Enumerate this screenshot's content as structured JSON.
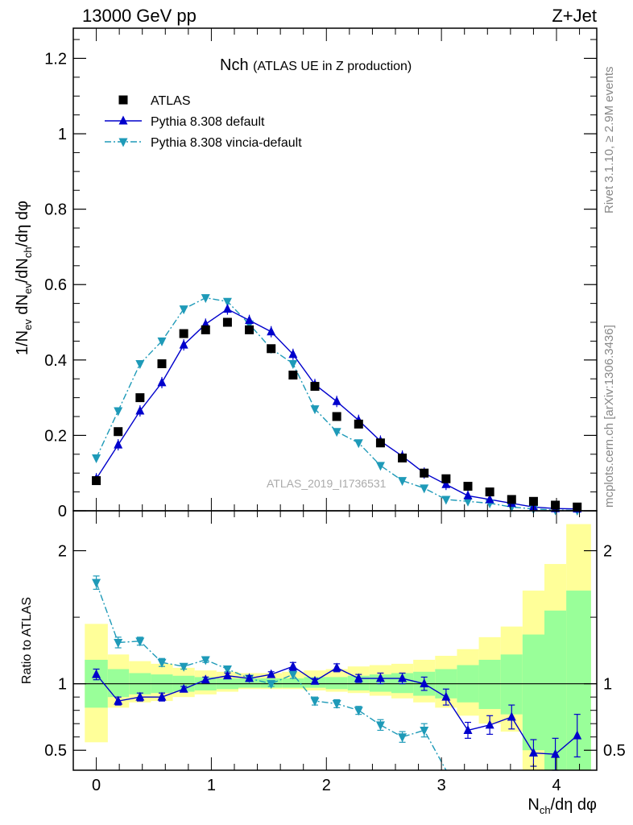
{
  "header": {
    "energy": "13000 GeV pp",
    "process": "Z+Jet"
  },
  "side_labels": {
    "rivet": "Rivet 3.1.10, ≥ 2.9M events",
    "mcplots": "mcplots.cern.ch [arXiv:1306.3436]"
  },
  "chart_data": [
    {
      "type": "scatter",
      "title_main": "Nch",
      "title_sub": "(ATLAS UE in Z production)",
      "xlabel": "N_ch/dη dφ",
      "ylabel": "1/N_ev dN_ev/dN_ch/dη dφ",
      "analysis_label": "ATLAS_2019_I1736531",
      "xlim": [
        -0.2,
        4.35
      ],
      "ylim": [
        0,
        1.28
      ],
      "yticks": [
        0,
        0.2,
        0.4,
        0.6,
        0.8,
        1,
        1.2
      ],
      "ytick_labels": [
        "0",
        "0.2",
        "0.4",
        "0.6",
        "0.8",
        "1",
        "1.2"
      ],
      "legend": [
        "ATLAS",
        "Pythia 8.308 default",
        "Pythia 8.308 vincia-default"
      ],
      "legend_position": "top-left",
      "colors": {
        "data": "#000000",
        "default": "#0000cc",
        "vincia": "#1e9ab8"
      },
      "x": [
        0,
        0.19,
        0.38,
        0.57,
        0.76,
        0.95,
        1.14,
        1.33,
        1.52,
        1.71,
        1.9,
        2.09,
        2.28,
        2.47,
        2.66,
        2.85,
        3.04,
        3.23,
        3.42,
        3.61,
        3.8,
        3.99,
        4.18
      ],
      "series": [
        {
          "name": "ATLAS",
          "marker": "square",
          "values": [
            0.08,
            0.21,
            0.3,
            0.39,
            0.47,
            0.48,
            0.5,
            0.48,
            0.43,
            0.36,
            0.33,
            0.25,
            0.23,
            0.18,
            0.14,
            0.1,
            0.085,
            0.065,
            0.05,
            0.03,
            0.025,
            0.015,
            0.01
          ]
        },
        {
          "name": "Pythia 8.308 default",
          "marker": "triangle-up",
          "values": [
            0.085,
            0.175,
            0.265,
            0.34,
            0.44,
            0.495,
            0.535,
            0.505,
            0.475,
            0.415,
            0.335,
            0.29,
            0.24,
            0.185,
            0.145,
            0.1,
            0.07,
            0.04,
            0.03,
            0.02,
            0.01,
            0.006,
            0.005
          ]
        },
        {
          "name": "Pythia 8.308 vincia-default",
          "marker": "triangle-down",
          "values": [
            0.14,
            0.265,
            0.39,
            0.45,
            0.535,
            0.565,
            0.555,
            0.495,
            0.43,
            0.39,
            0.27,
            0.21,
            0.18,
            0.12,
            0.08,
            0.06,
            0.03,
            0.025,
            0.02,
            0.01,
            0.005,
            0.002,
            0.001
          ]
        }
      ]
    },
    {
      "type": "line",
      "ylabel": "Ratio to ATLAS",
      "ylim": [
        0.35,
        2.3
      ],
      "yticks": [
        0.5,
        1,
        2
      ],
      "ytick_labels": [
        "0.5",
        "1",
        "2"
      ],
      "xticks": [
        0,
        1,
        2,
        3,
        4
      ],
      "xtick_labels": [
        "0",
        "1",
        "2",
        "3",
        "4"
      ],
      "bin_edges": [
        -0.1,
        0.1,
        0.285,
        0.475,
        0.665,
        0.855,
        1.045,
        1.235,
        1.425,
        1.615,
        1.805,
        1.995,
        2.185,
        2.375,
        2.565,
        2.755,
        2.945,
        3.135,
        3.325,
        3.515,
        3.705,
        3.895,
        4.085,
        4.3
      ],
      "band_outer_lo": [
        0.56,
        0.82,
        0.86,
        0.87,
        0.9,
        0.92,
        0.94,
        0.96,
        0.96,
        0.96,
        0.95,
        0.94,
        0.93,
        0.91,
        0.89,
        0.86,
        0.82,
        0.76,
        0.7,
        0.64,
        0.1,
        0.1,
        0.1
      ],
      "band_outer_hi": [
        1.45,
        1.22,
        1.17,
        1.15,
        1.12,
        1.1,
        1.09,
        1.08,
        1.08,
        1.09,
        1.1,
        1.11,
        1.13,
        1.14,
        1.15,
        1.18,
        1.21,
        1.26,
        1.35,
        1.43,
        1.7,
        1.9,
        2.2
      ],
      "band_inner_lo": [
        0.82,
        0.9,
        0.92,
        0.93,
        0.94,
        0.95,
        0.96,
        0.97,
        0.97,
        0.97,
        0.97,
        0.96,
        0.95,
        0.94,
        0.93,
        0.91,
        0.89,
        0.86,
        0.81,
        0.77,
        0.5,
        0.1,
        0.1
      ],
      "band_inner_hi": [
        1.18,
        1.11,
        1.08,
        1.07,
        1.06,
        1.05,
        1.04,
        1.04,
        1.04,
        1.04,
        1.05,
        1.05,
        1.06,
        1.07,
        1.08,
        1.09,
        1.11,
        1.14,
        1.18,
        1.22,
        1.37,
        1.55,
        1.7
      ],
      "band_colors": {
        "outer": "#ffff99",
        "inner": "#99ff99"
      },
      "series": [
        {
          "name": "Pythia 8.308 default",
          "marker": "triangle-up",
          "values": [
            1.07,
            0.87,
            0.9,
            0.9,
            0.96,
            1.03,
            1.06,
            1.04,
            1.07,
            1.13,
            1.02,
            1.12,
            1.04,
            1.04,
            1.04,
            1.0,
            0.9,
            0.65,
            0.69,
            0.75,
            0.48,
            0.47,
            0.61
          ],
          "err": [
            0.04,
            0.03,
            0.03,
            0.03,
            0.02,
            0.02,
            0.02,
            0.02,
            0.02,
            0.03,
            0.02,
            0.03,
            0.03,
            0.04,
            0.04,
            0.05,
            0.06,
            0.06,
            0.07,
            0.09,
            0.1,
            0.12,
            0.16
          ]
        },
        {
          "name": "Pythia 8.308 vincia-default",
          "marker": "triangle-down",
          "values": [
            1.76,
            1.31,
            1.32,
            1.16,
            1.13,
            1.18,
            1.11,
            1.04,
            1.0,
            1.07,
            0.87,
            0.85,
            0.8,
            0.69,
            0.6,
            0.65,
            0.35,
            null,
            null,
            null,
            null,
            null,
            null
          ],
          "err": [
            0.05,
            0.04,
            0.03,
            0.03,
            0.02,
            0.02,
            0.02,
            0.02,
            0.02,
            0.03,
            0.03,
            0.03,
            0.03,
            0.04,
            0.04,
            0.05,
            0,
            0,
            0,
            0,
            0,
            0,
            0
          ]
        }
      ]
    }
  ]
}
